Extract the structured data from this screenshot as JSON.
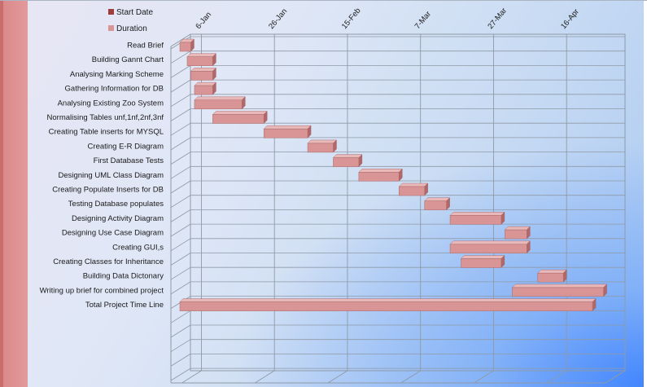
{
  "chart_data": {
    "type": "bar",
    "orientation": "horizontal",
    "style": "3d-gantt",
    "legend": {
      "position": "top-left",
      "entries": [
        {
          "name": "Start Date",
          "color": "#a03c3c"
        },
        {
          "name": "Duration",
          "color": "#d99595"
        }
      ]
    },
    "x_axis": {
      "position": "top",
      "tick_labels": [
        "6-Jan",
        "26-Jan",
        "15-Feb",
        "7-Mar",
        "27-Mar",
        "16-Apr"
      ],
      "tick_values_days": [
        0,
        20,
        40,
        60,
        80,
        100
      ],
      "range_days": [
        -3,
        116
      ]
    },
    "categories": [
      "Read Brief",
      "Building Gannt Chart",
      "Analysing Marking Scheme",
      "Gathering Information for DB",
      "Analysing Existing Zoo System",
      "Normalising Tables unf,1nf,2nf,3nf",
      "Creating Table inserts for MYSQL",
      "Creating E-R Diagram",
      "First Database Tests",
      "Designing UML Class Diagram",
      "Creating Populate Inserts for DB",
      "Testing Database populates",
      "Designing Activity Diagram",
      "Designing Use Case Diagram",
      "Creating GUI,s",
      "Creating Classes for Inheritance",
      "Building Data Dictonary",
      "Writing up brief for combined project",
      "Total Project Time Line"
    ],
    "series": [
      {
        "name": "Start Date",
        "unit": "days after 6-Jan",
        "values": [
          -3,
          -1,
          0,
          1,
          1,
          6,
          20,
          32,
          39,
          46,
          57,
          64,
          71,
          86,
          71,
          74,
          95,
          88,
          -3
        ]
      },
      {
        "name": "Duration",
        "unit": "days",
        "values": [
          3,
          7,
          6,
          5,
          13,
          14,
          12,
          7,
          7,
          11,
          7,
          6,
          14,
          6,
          21,
          11,
          7,
          25,
          113
        ]
      }
    ]
  },
  "colors": {
    "bar_front": "#d99595",
    "bar_top": "#e9b8b8",
    "bar_side": "#b06868",
    "grid": "#8f9aa6",
    "accent_strip": "#e39a9a"
  }
}
